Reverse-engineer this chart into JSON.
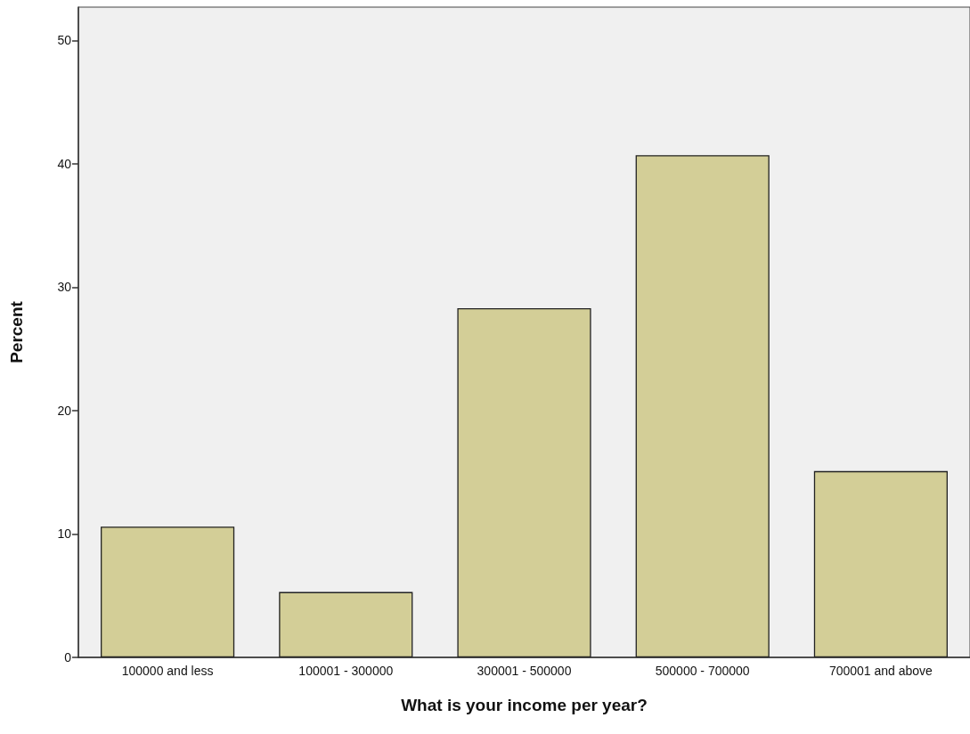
{
  "chart_data": {
    "type": "bar",
    "xlabel": "What is your income per year?",
    "ylabel": "Percent",
    "categories": [
      "100000 and less",
      "100001 - 300000",
      "300001 - 500000",
      "500000 - 700000",
      "700001 and above"
    ],
    "values": [
      10.6,
      5.3,
      28.3,
      40.7,
      15.1
    ],
    "color": "#d3ce97",
    "ylim": [
      0,
      52.7
    ],
    "yticks": [
      0,
      10,
      20,
      30,
      40,
      50
    ],
    "grid": false
  }
}
